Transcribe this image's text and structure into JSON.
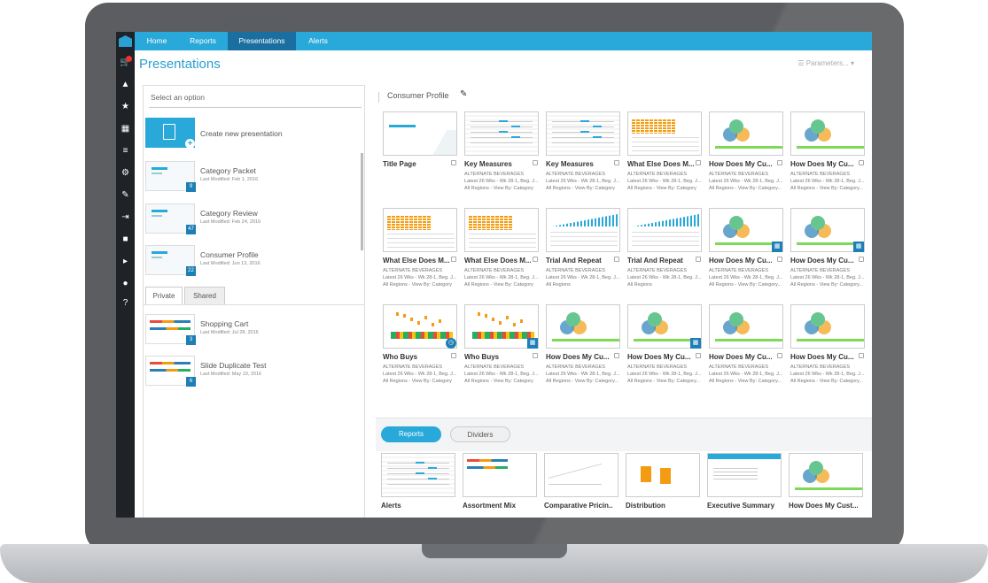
{
  "nav": {
    "items": [
      "Home",
      "Reports",
      "Presentations",
      "Alerts"
    ]
  },
  "page": {
    "title": "Presentations",
    "parameters_label": "Parameters"
  },
  "left": {
    "select_label": "Select an option",
    "create_label": "Create new presentation",
    "presentations": [
      {
        "name": "Category Packet",
        "modified": "Last Modified: Feb 1, 2016",
        "count": "9"
      },
      {
        "name": "Category Review",
        "modified": "Last Modified: Feb 24, 2016",
        "count": "47"
      },
      {
        "name": "Consumer Profile",
        "modified": "Last Modified: Jun 13, 2016",
        "count": "22"
      }
    ],
    "tabs": [
      "Private",
      "Shared"
    ],
    "private_items": [
      {
        "name": "Shopping Cart",
        "modified": "Last Modified: Jul 28, 2016",
        "count": "3"
      },
      {
        "name": "Slide Duplicate Test",
        "modified": "Last Modified: May 19, 2016",
        "count": "6"
      }
    ]
  },
  "right": {
    "title": "Consumer Profile",
    "slides": [
      {
        "title": "Title Page",
        "sub1": "",
        "sub2": "",
        "sub3": ""
      },
      {
        "title": "Key Measures",
        "sub1": "ALTERNATE BEVERAGES",
        "sub2": "Latest 26 Wks - Wk 28-1, Beg. J...",
        "sub3": "All Regions - View By: Category"
      },
      {
        "title": "Key Measures",
        "sub1": "ALTERNATE BEVERAGES",
        "sub2": "Latest 26 Wks - Wk 28-1, Beg. J...",
        "sub3": "All Regions - View By: Category"
      },
      {
        "title": "What Else Does M...",
        "sub1": "ALTERNATE BEVERAGES",
        "sub2": "Latest 26 Wks - Wk 28-1, Beg. J...",
        "sub3": "All Regions - View By: Category"
      },
      {
        "title": "How Does My Cu...",
        "sub1": "ALTERNATE BEVERAGES",
        "sub2": "Latest 26 Wks - Wk 28-1, Beg. J...",
        "sub3": "All Regions - View By: Category..."
      },
      {
        "title": "How Does My Cu...",
        "sub1": "ALTERNATE BEVERAGES",
        "sub2": "Latest 26 Wks - Wk 28-1, Beg. J...",
        "sub3": "All Regions - View By: Category..."
      },
      {
        "title": "What Else Does M...",
        "sub1": "ALTERNATE BEVERAGES",
        "sub2": "Latest 26 Wks - Wk 28-1, Beg. J...",
        "sub3": "All Regions - View By: Category"
      },
      {
        "title": "What Else Does M...",
        "sub1": "ALTERNATE BEVERAGES",
        "sub2": "Latest 26 Wks - Wk 28-1, Beg. J...",
        "sub3": "All Regions - View By: Category"
      },
      {
        "title": "Trial And Repeat",
        "sub1": "ALTERNATE BEVERAGES",
        "sub2": "Latest 26 Wks - Wk 28-1, Beg. J...",
        "sub3": "All Regions"
      },
      {
        "title": "Trial And Repeat",
        "sub1": "ALTERNATE BEVERAGES",
        "sub2": "Latest 26 Wks - Wk 28-1, Beg. J...",
        "sub3": "All Regions"
      },
      {
        "title": "How Does My Cu...",
        "sub1": "ALTERNATE BEVERAGES",
        "sub2": "Latest 26 Wks - Wk 28-1, Beg. J...",
        "sub3": "All Regions - View By: Category..."
      },
      {
        "title": "How Does My Cu...",
        "sub1": "ALTERNATE BEVERAGES",
        "sub2": "Latest 26 Wks - Wk 28-1, Beg. J...",
        "sub3": "All Regions - View By: Category..."
      },
      {
        "title": "Who Buys",
        "sub1": "ALTERNATE BEVERAGES",
        "sub2": "Latest 26 Wks - Wk 28-1, Beg. J...",
        "sub3": "All Regions - View By: Category"
      },
      {
        "title": "Who Buys",
        "sub1": "ALTERNATE BEVERAGES",
        "sub2": "Latest 26 Wks - Wk 28-1, Beg. J...",
        "sub3": "All Regions - View By: Category"
      },
      {
        "title": "How Does My Cu...",
        "sub1": "ALTERNATE BEVERAGES",
        "sub2": "Latest 26 Wks - Wk 28-1, Beg. J...",
        "sub3": "All Regions - View By: Category..."
      },
      {
        "title": "How Does My Cu...",
        "sub1": "ALTERNATE BEVERAGES",
        "sub2": "Latest 26 Wks - Wk 28-1, Beg. J...",
        "sub3": "All Regions - View By: Category..."
      },
      {
        "title": "How Does My Cu...",
        "sub1": "ALTERNATE BEVERAGES",
        "sub2": "Latest 26 Wks - Wk 28-1, Beg. J...",
        "sub3": "All Regions - View By: Category..."
      },
      {
        "title": "How Does My Cu...",
        "sub1": "ALTERNATE BEVERAGES",
        "sub2": "Latest 26 Wks - Wk 28-1, Beg. J...",
        "sub3": "All Regions - View By: Category..."
      }
    ],
    "pills": [
      "Reports",
      "Dividers"
    ],
    "reports": [
      "Alerts",
      "Assortment Mix",
      "Comparative Pricin...",
      "Distribution",
      "Executive Summary",
      "How Does My Cust..."
    ]
  },
  "colors": {
    "accent": "#29a8da",
    "nav_active": "#1a6fa0",
    "rail": "#1f2327",
    "badge": "#1d7fb5"
  }
}
